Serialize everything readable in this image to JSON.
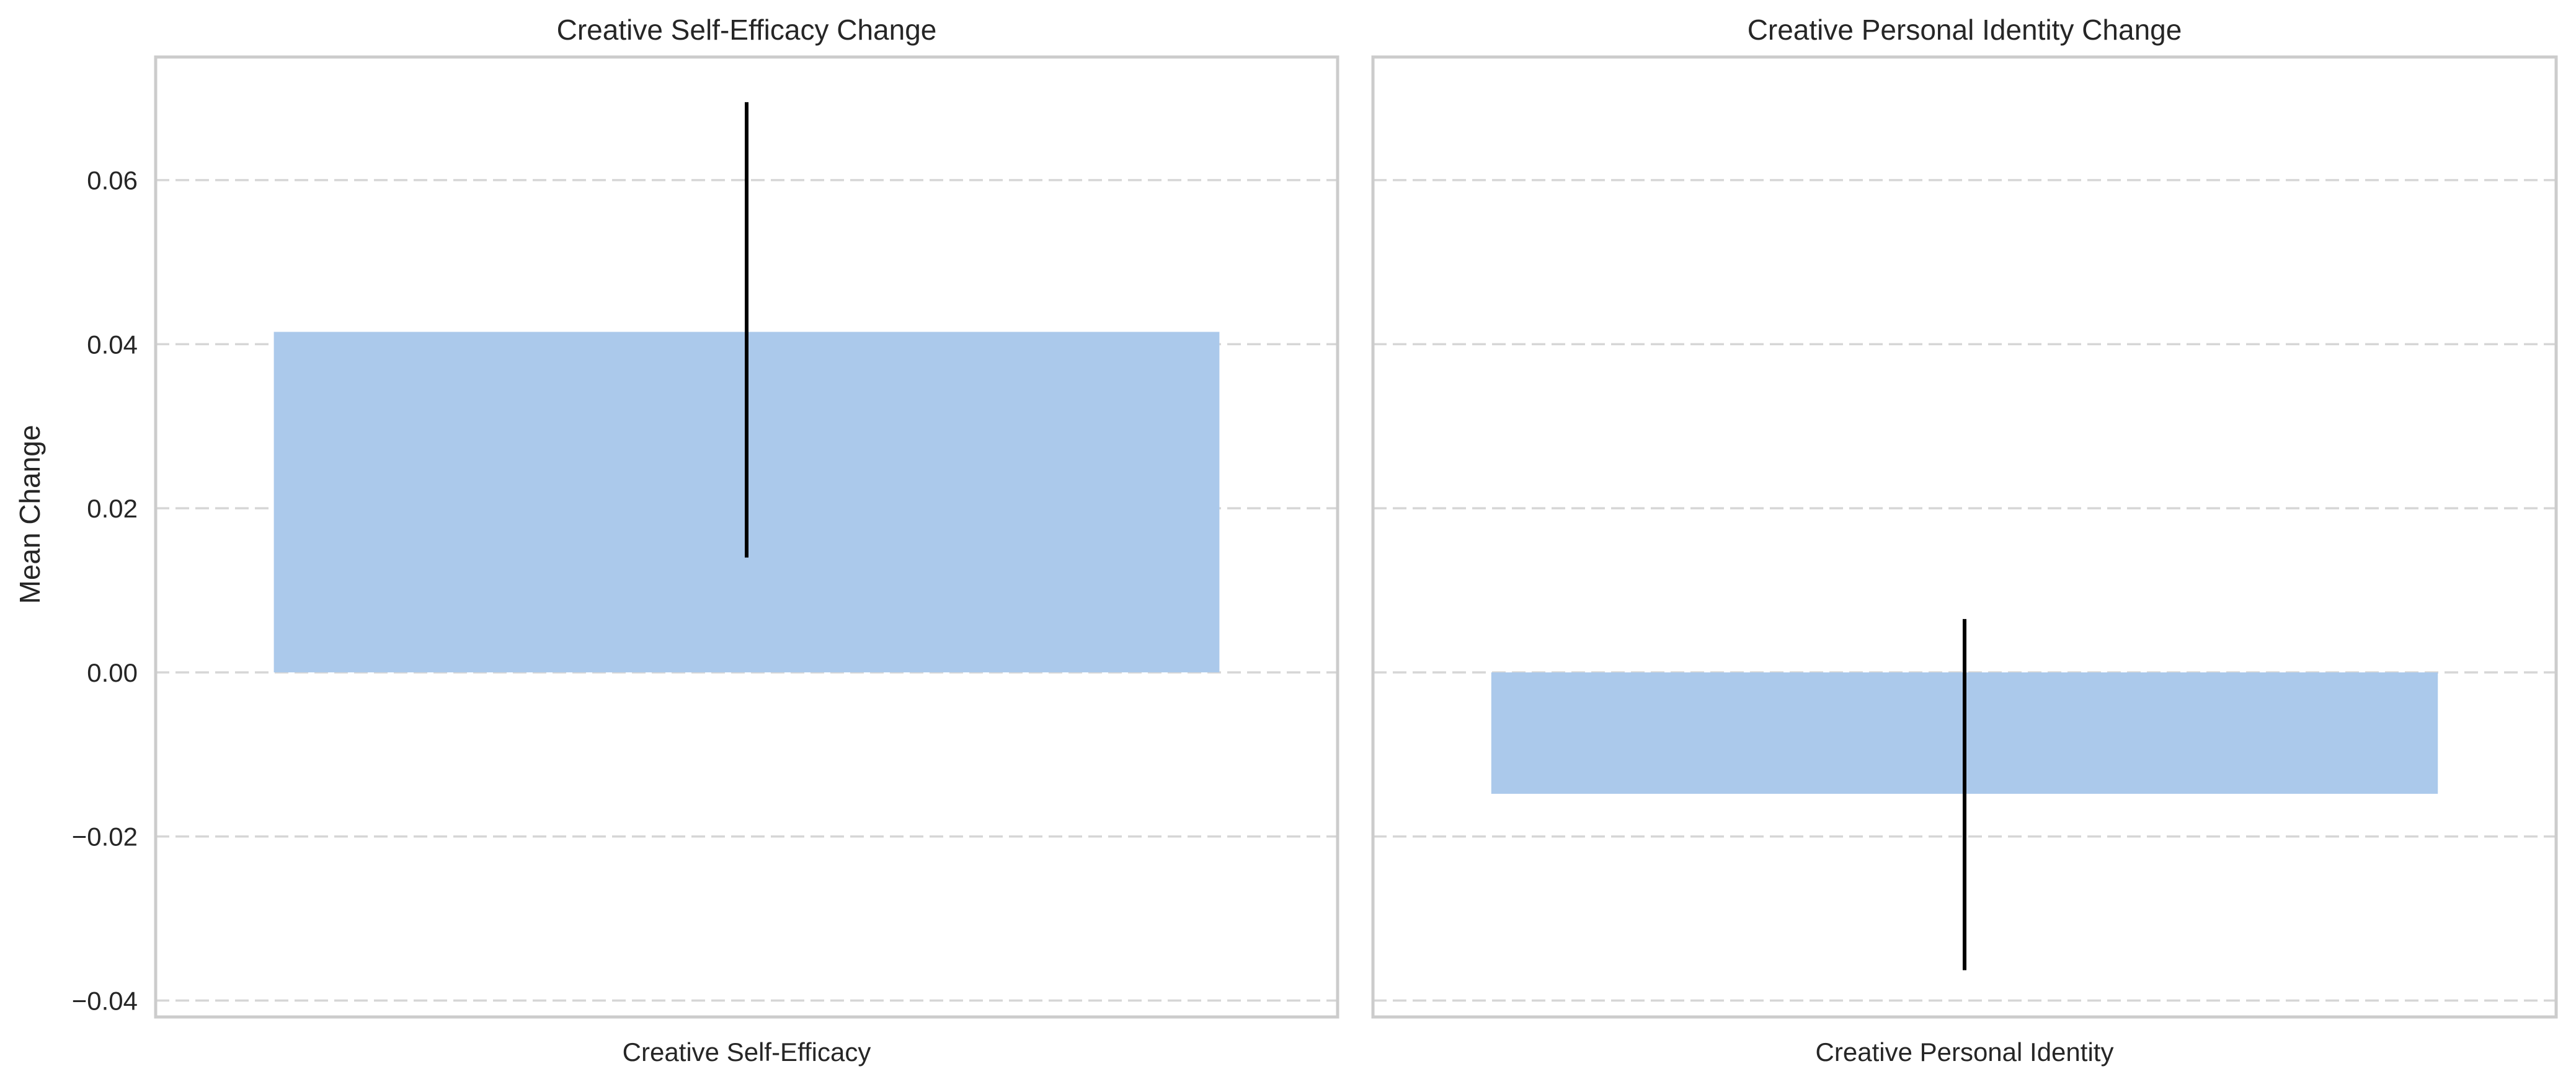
{
  "chart_data": {
    "type": "bar",
    "ylabel": "Mean Change",
    "ylim": [
      -0.042,
      0.075
    ],
    "yticks": [
      0.06,
      0.04,
      0.02,
      0.0,
      -0.02,
      -0.04
    ],
    "ytick_labels": [
      "0.06",
      "0.04",
      "0.02",
      "0.00",
      "−0.02",
      "−0.04"
    ],
    "grid": true,
    "bar_color": "#abc9eb",
    "error_color": "#000000",
    "panels": [
      {
        "title": "Creative Self-Efficacy Change",
        "categories": [
          "Creative Self-Efficacy"
        ],
        "values": [
          0.0415
        ],
        "error_low": [
          0.014
        ],
        "error_high": [
          0.0695
        ]
      },
      {
        "title": "Creative Personal Identity Change",
        "categories": [
          "Creative Personal Identity"
        ],
        "values": [
          -0.0148
        ],
        "error_low": [
          -0.0363
        ],
        "error_high": [
          0.0065
        ]
      }
    ]
  }
}
